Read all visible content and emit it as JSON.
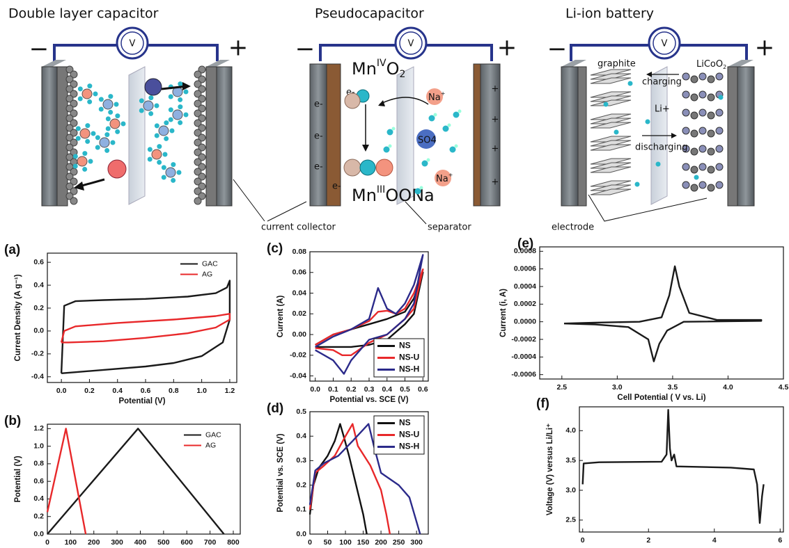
{
  "diagram": {
    "panels": [
      {
        "title": "Double layer capacitor",
        "meter": "V",
        "minus": "−",
        "plus": "+"
      },
      {
        "title": "Pseudocapacitor",
        "meter": "V",
        "minus": "−",
        "plus": "+",
        "oxide_top": [
          "Mn",
          "IV",
          "O",
          "2"
        ],
        "oxide_bottom": [
          "Mn",
          "III",
          "OONa"
        ],
        "electrons": [
          "e-",
          "e-",
          "e-",
          "e-",
          "e-"
        ],
        "charges": [
          "+",
          "+",
          "+",
          "+"
        ],
        "ions": [
          [
            "Na",
            "+"
          ],
          [
            "Na",
            "+"
          ]
        ],
        "sulfate": "SO4"
      },
      {
        "title": "Li-ion battery",
        "meter": "V",
        "minus": "−",
        "plus": "+",
        "anode": "graphite",
        "cathode": [
          "LiCoO",
          "2"
        ],
        "charging": "charging",
        "lithium": "Li+",
        "discharging": "discharging"
      }
    ],
    "callouts": [
      "current collector",
      "separator",
      "electrode"
    ]
  },
  "chart_data": [
    {
      "type": "line",
      "panel": "(a)",
      "xlabel": "Potential (V)",
      "ylabel": "Current Density (A g⁻¹)",
      "xlim": [
        -0.1,
        1.25
      ],
      "ylim": [
        -0.45,
        0.68
      ],
      "xticks": [
        {
          "value": 0,
          "label": "0.0"
        },
        0.2,
        0.4,
        0.6,
        0.8,
        {
          "value": 1,
          "label": "1.0"
        },
        1.2
      ],
      "yticks": [
        -0.4,
        -0.2,
        {
          "value": 0,
          "label": "0.0"
        },
        0.2,
        0.4,
        0.6
      ],
      "legend": "top-right",
      "series": [
        {
          "name": "GAC",
          "color": "#1a1a1a",
          "x": [
            0,
            0.02,
            0.1,
            0.3,
            0.6,
            0.9,
            1.1,
            1.18,
            1.2,
            1.2,
            1.15,
            1.0,
            0.8,
            0.6,
            0.3,
            0.1,
            0
          ],
          "values": [
            -0.37,
            0.22,
            0.26,
            0.27,
            0.28,
            0.3,
            0.33,
            0.38,
            0.44,
            0.1,
            -0.1,
            -0.22,
            -0.28,
            -0.31,
            -0.34,
            -0.36,
            -0.37
          ]
        },
        {
          "name": "AG",
          "color": "#e8282a",
          "x": [
            0,
            0.02,
            0.1,
            0.4,
            0.8,
            1.1,
            1.2,
            1.2,
            1.1,
            0.9,
            0.6,
            0.3,
            0.05,
            0
          ],
          "values": [
            -0.1,
            0.0,
            0.04,
            0.07,
            0.1,
            0.13,
            0.15,
            0.1,
            0.03,
            -0.02,
            -0.06,
            -0.09,
            -0.1,
            -0.1
          ]
        }
      ]
    },
    {
      "type": "line",
      "panel": "(b)",
      "ylabel": "Potential (V)",
      "xlim": [
        0,
        830
      ],
      "ylim": [
        0,
        1.25
      ],
      "xticks": [
        0,
        100,
        200,
        300,
        400,
        500,
        600,
        700,
        800
      ],
      "yticks": [
        {
          "value": 0,
          "label": "0.0"
        },
        0.2,
        0.4,
        0.6,
        0.8,
        {
          "value": 1,
          "label": "1.0"
        },
        1.2
      ],
      "legend": "top-right",
      "series": [
        {
          "name": "GAC",
          "color": "#1a1a1a",
          "x": [
            0,
            390,
            760
          ],
          "values": [
            0,
            1.2,
            0
          ]
        },
        {
          "name": "AG",
          "color": "#e8282a",
          "x": [
            0,
            80,
            165
          ],
          "values": [
            0.25,
            1.2,
            0
          ]
        }
      ]
    },
    {
      "type": "line",
      "panel": "(c)",
      "xlabel": "Potential vs. SCE (V)",
      "ylabel": "Current (A)",
      "xlim": [
        -0.03,
        0.63
      ],
      "ylim": [
        -0.045,
        0.08
      ],
      "xticks": [
        {
          "value": 0,
          "label": "0.0"
        },
        0.1,
        0.2,
        0.3,
        0.4,
        0.5,
        0.6
      ],
      "yticks": [
        -0.04,
        -0.02,
        {
          "value": 0,
          "label": "0.00"
        },
        0.02,
        0.04,
        0.06,
        0.08
      ],
      "legend": "bottom-right",
      "series": [
        {
          "name": "NS",
          "color": "#111111",
          "x": [
            0,
            0.1,
            0.2,
            0.3,
            0.4,
            0.5,
            0.55,
            0.6,
            0.55,
            0.5,
            0.4,
            0.3,
            0.2,
            0.1,
            0
          ],
          "values": [
            -0.01,
            0.0,
            0.005,
            0.01,
            0.015,
            0.022,
            0.035,
            0.06,
            0.02,
            0.01,
            -0.005,
            -0.01,
            -0.012,
            -0.012,
            -0.012
          ]
        },
        {
          "name": "NS-U",
          "color": "#e8282a",
          "x": [
            0,
            0.1,
            0.2,
            0.3,
            0.35,
            0.4,
            0.45,
            0.5,
            0.55,
            0.6,
            0.55,
            0.5,
            0.4,
            0.3,
            0.2,
            0.15,
            0.1,
            0
          ],
          "values": [
            -0.01,
            0.0,
            0.005,
            0.013,
            0.022,
            0.023,
            0.02,
            0.025,
            0.04,
            0.063,
            0.025,
            0.015,
            0.0,
            -0.008,
            -0.02,
            -0.02,
            -0.015,
            -0.013
          ]
        },
        {
          "name": "NS-H",
          "color": "#2b2a8a",
          "x": [
            0,
            0.1,
            0.2,
            0.3,
            0.35,
            0.4,
            0.45,
            0.5,
            0.55,
            0.6,
            0.55,
            0.5,
            0.4,
            0.3,
            0.2,
            0.16,
            0.1,
            0
          ],
          "values": [
            -0.012,
            -0.002,
            0.005,
            0.015,
            0.045,
            0.025,
            0.02,
            0.03,
            0.048,
            0.077,
            0.03,
            0.015,
            0.0,
            -0.005,
            -0.025,
            -0.038,
            -0.025,
            -0.015
          ]
        }
      ]
    },
    {
      "type": "line",
      "panel": "(d)",
      "ylabel": "Potential vs. SCE (V)",
      "xlim": [
        0,
        333
      ],
      "ylim": [
        0,
        0.5
      ],
      "xticks": [
        0,
        50,
        100,
        150,
        200,
        250,
        300
      ],
      "yticks": [
        {
          "value": 0,
          "label": "0.0"
        },
        0.1,
        0.2,
        0.3,
        0.4,
        0.5
      ],
      "legend": "top-right",
      "series": [
        {
          "name": "NS",
          "color": "#111111",
          "x": [
            0,
            10,
            25,
            50,
            70,
            85,
            95,
            110,
            130,
            150,
            160
          ],
          "values": [
            0.08,
            0.2,
            0.27,
            0.32,
            0.38,
            0.45,
            0.4,
            0.32,
            0.2,
            0.08,
            0
          ]
        },
        {
          "name": "NS-U",
          "color": "#e8282a",
          "x": [
            0,
            15,
            40,
            70,
            100,
            120,
            135,
            170,
            200,
            215,
            225
          ],
          "values": [
            0.1,
            0.25,
            0.28,
            0.32,
            0.4,
            0.45,
            0.36,
            0.28,
            0.18,
            0.08,
            0
          ]
        },
        {
          "name": "NS-H",
          "color": "#2b2a8a",
          "x": [
            0,
            15,
            40,
            80,
            120,
            165,
            180,
            200,
            250,
            280,
            300,
            310
          ],
          "values": [
            0.12,
            0.26,
            0.29,
            0.32,
            0.38,
            0.45,
            0.36,
            0.25,
            0.2,
            0.15,
            0.05,
            0
          ]
        }
      ]
    },
    {
      "type": "line",
      "panel": "(e)",
      "xlabel": "Cell Potential ( V  vs. Li)",
      "ylabel": "Current  (i, A)",
      "xlim": [
        2.3,
        4.5
      ],
      "ylim": [
        -0.00065,
        0.00085
      ],
      "xticks": [
        2.5,
        {
          "value": 3,
          "label": "3.0"
        },
        3.5,
        {
          "value": 4,
          "label": "4.0"
        },
        4.5
      ],
      "yticks": [
        -0.0006,
        -0.0004,
        -0.0002,
        {
          "value": 0,
          "label": "0.0000"
        },
        0.0002,
        0.0004,
        0.0006,
        0.0008
      ],
      "series": [
        {
          "color": "#1a1a1a",
          "x": [
            2.52,
            2.8,
            3.2,
            3.4,
            3.47,
            3.52,
            3.56,
            3.65,
            3.9,
            4.3,
            4.3,
            3.6,
            3.45,
            3.38,
            3.33,
            3.28,
            3.1,
            2.8,
            2.52
          ],
          "values": [
            -2e-05,
            -1e-05,
            0.0,
            5e-05,
            0.0003,
            0.00063,
            0.0004,
            0.0001,
            2e-05,
            2e-05,
            1e-05,
            0.0,
            -0.0001,
            -0.00025,
            -0.00045,
            -0.0002,
            -6e-05,
            -3e-05,
            -2e-05
          ]
        }
      ]
    },
    {
      "type": "line",
      "panel": "(f)",
      "ylabel": "Voltage (V) versus Li/Li⁺",
      "xlim": [
        -0.1,
        6.1
      ],
      "ylim": [
        2.3,
        4.4
      ],
      "xticks": [
        0,
        2,
        4,
        6
      ],
      "yticks": [
        2.5,
        {
          "value": 3,
          "label": "3.0"
        },
        3.5,
        {
          "value": 4,
          "label": "4.0"
        }
      ],
      "series": [
        {
          "color": "#1a1a1a",
          "x": [
            0,
            0.03,
            0.5,
            2.4,
            2.55,
            2.6,
            2.65,
            2.7,
            2.78,
            2.85,
            4.5,
            5.2,
            5.3,
            5.38,
            5.45,
            5.5
          ],
          "values": [
            3.1,
            3.45,
            3.47,
            3.48,
            3.6,
            4.35,
            3.7,
            3.5,
            3.6,
            3.4,
            3.38,
            3.35,
            3.1,
            2.45,
            2.9,
            3.1
          ]
        }
      ]
    }
  ]
}
